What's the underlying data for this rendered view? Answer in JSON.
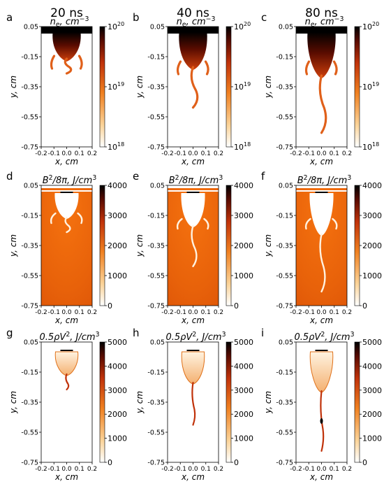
{
  "figure": {
    "columns": [
      {
        "time_label": "20 ns"
      },
      {
        "time_label": "40 ns"
      },
      {
        "time_label": "80 ns"
      }
    ],
    "panel_letters": [
      "a",
      "b",
      "c",
      "d",
      "e",
      "f",
      "g",
      "h",
      "i"
    ],
    "rows": [
      {
        "title": "n_e, cm^-3",
        "title_base": "n",
        "title_sub": "e",
        "title_rest": ", cm",
        "title_sup": "−3",
        "colorbar": {
          "scale": "log",
          "ticks": [
            {
              "base": "10",
              "exp": "20",
              "v": 1
            },
            {
              "base": "10",
              "exp": "19",
              "v": 0.5
            },
            {
              "base": "10",
              "exp": "18",
              "v": 0
            }
          ]
        }
      },
      {
        "title": "B^2/8π, J/cm^3",
        "title_base": "B",
        "title_sup1": "2",
        "title_rest": "/8π, J/cm",
        "title_sup": "3",
        "colorbar": {
          "scale": "linear",
          "ticks": [
            "4000",
            "3000",
            "2000",
            "1000",
            "0"
          ],
          "max": 4000
        }
      },
      {
        "title": "0.5ρV^2, J/cm^3",
        "title_base": "0.5ρV",
        "title_sup1": "2",
        "title_rest": ", J/cm",
        "title_sup": "3",
        "colorbar": {
          "scale": "linear",
          "ticks": [
            "5000",
            "4000",
            "3000",
            "2000",
            "1000",
            "0"
          ],
          "max": 5000
        }
      }
    ],
    "axes": {
      "xlabel": "x, cm",
      "ylabel": "y, cm",
      "xticks": [
        "-0.2",
        "-0.1",
        "0.0",
        "0.1",
        "0.2"
      ],
      "yticks": [
        "0.05",
        "-0.15",
        "-0.35",
        "-0.55",
        "-0.75"
      ],
      "xlim": [
        -0.2,
        0.2
      ],
      "ylim": [
        -0.75,
        0.05
      ]
    }
  },
  "colors": {
    "map_dark": "#000000",
    "map_mid": "#c0300a",
    "map_orange": "#f07818",
    "map_light": "#ffd9a0",
    "map_white": "#ffffff"
  }
}
